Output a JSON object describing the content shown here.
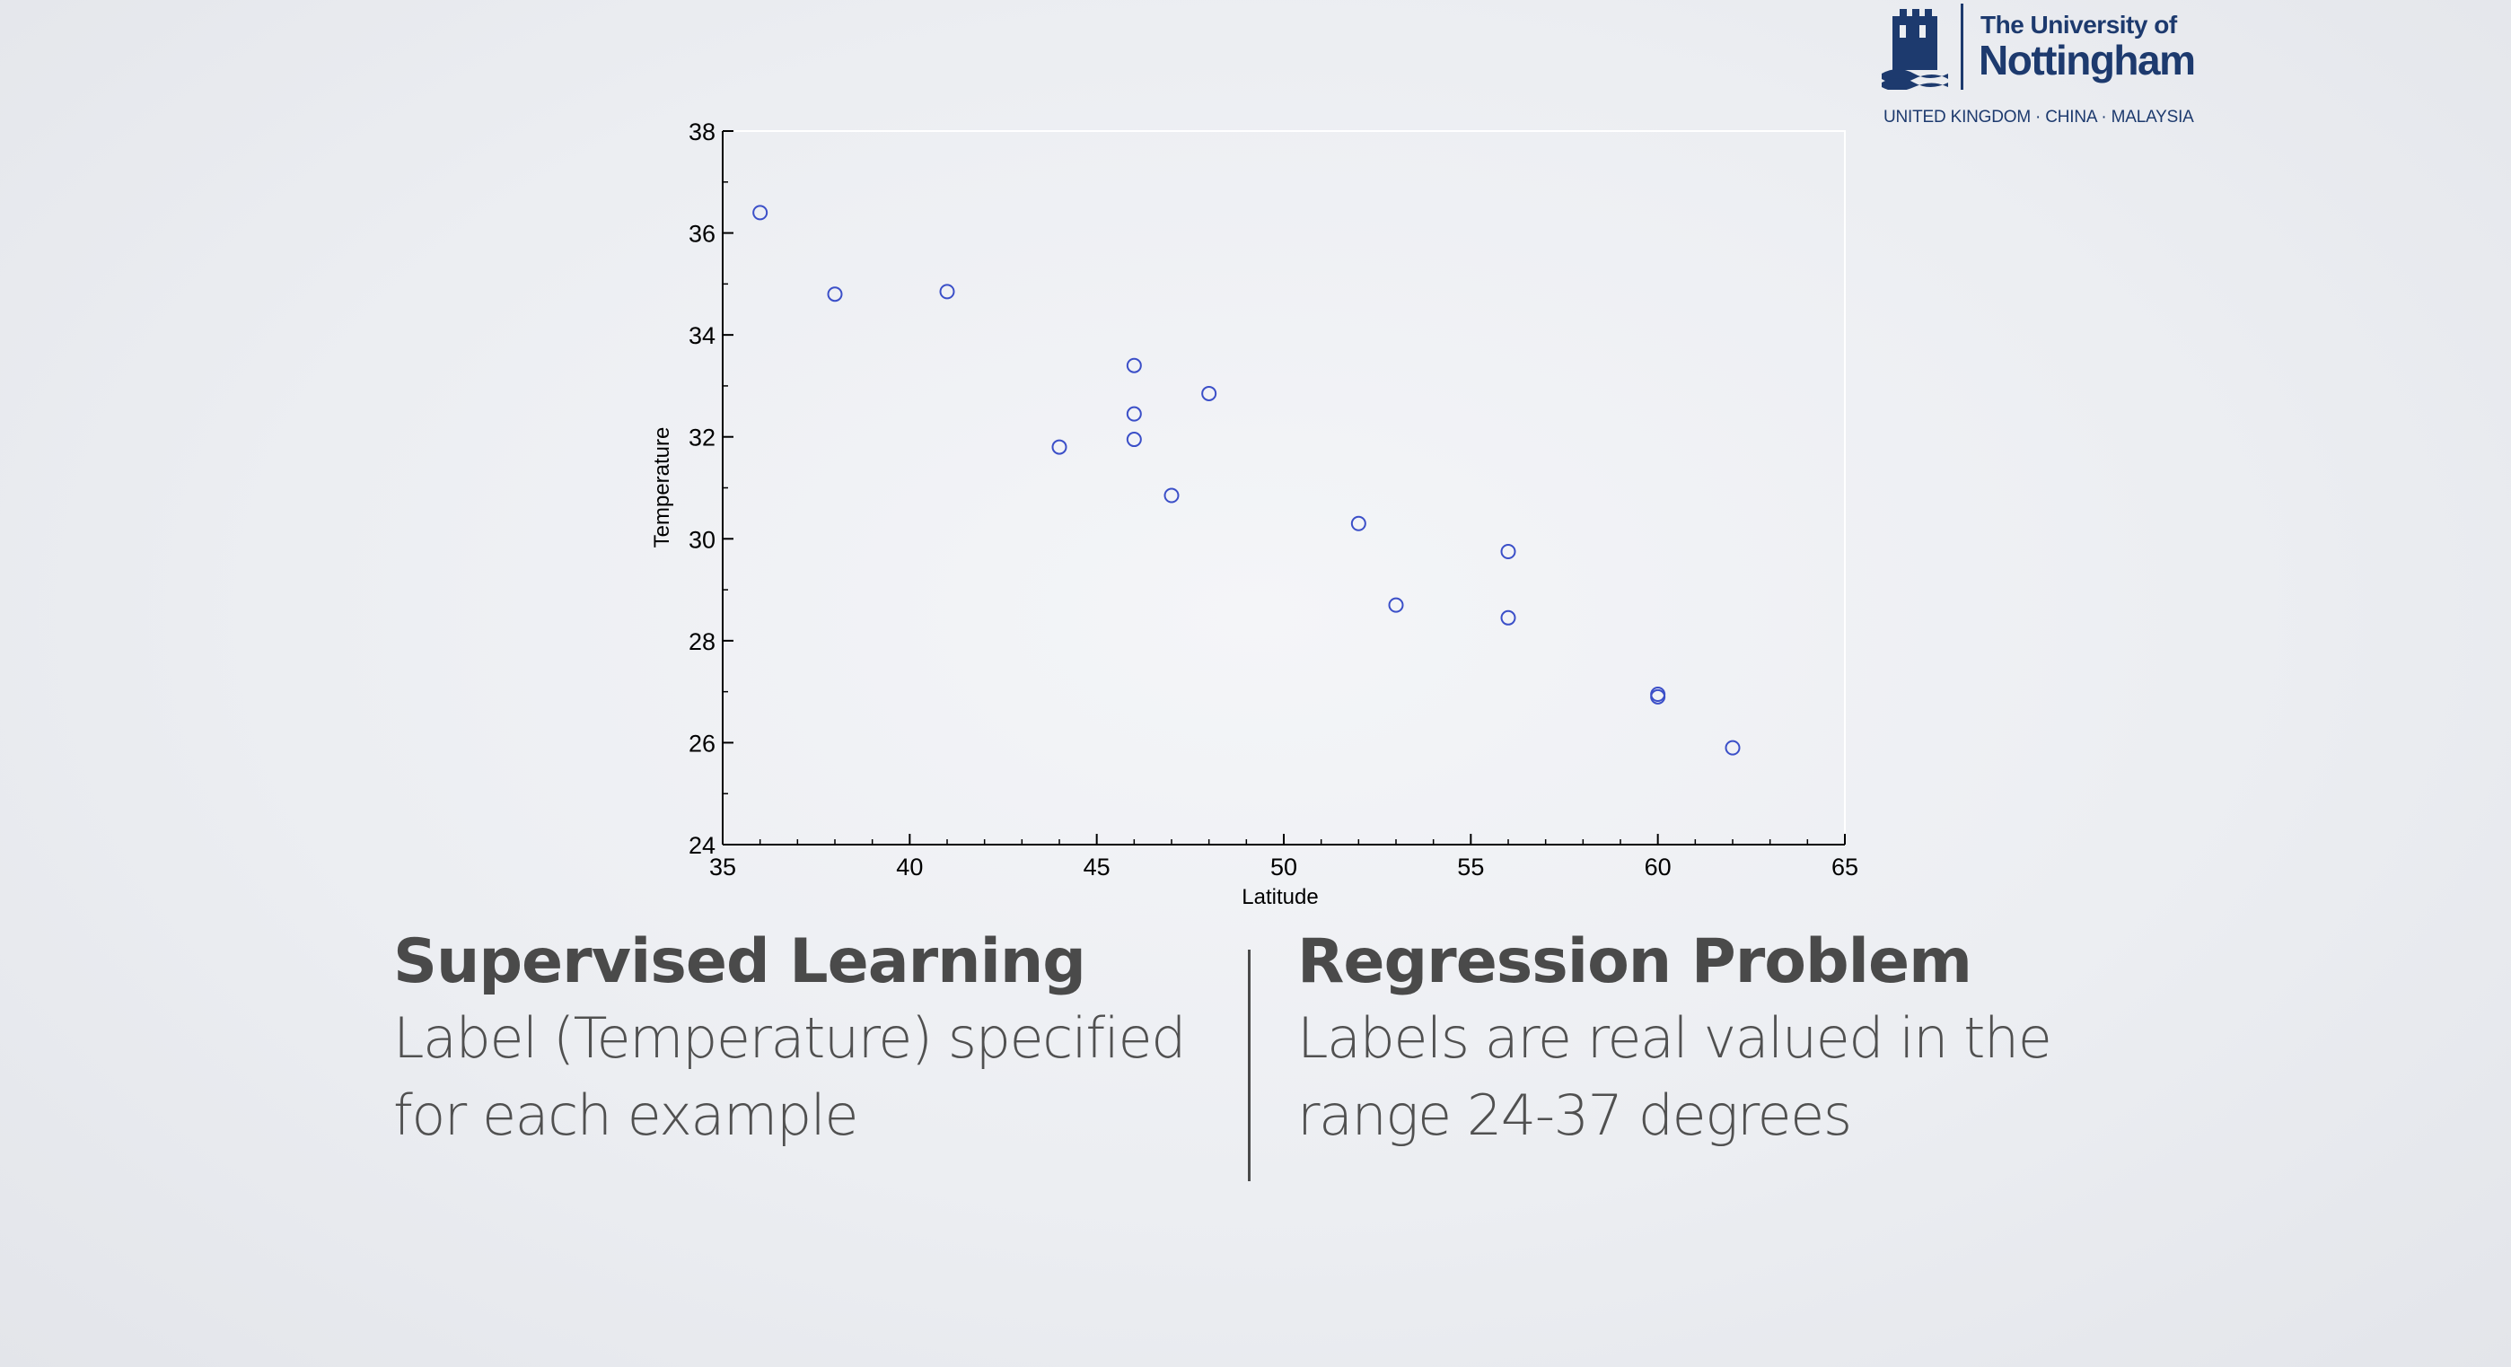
{
  "logo": {
    "line1": "The University of",
    "line2": "Nottingham",
    "subtitle": "UNITED KINGDOM · CHINA · MALAYSIA",
    "crest_icon": "castle-crest-icon",
    "color": "#1d3a6e"
  },
  "chart_data": {
    "type": "scatter",
    "xlabel": "Latitude",
    "ylabel": "Temperature",
    "xlim": [
      35,
      65
    ],
    "ylim": [
      24,
      38
    ],
    "x_ticks": [
      35,
      40,
      45,
      50,
      55,
      60,
      65
    ],
    "y_ticks": [
      24,
      26,
      28,
      30,
      32,
      34,
      36,
      38
    ],
    "grid": false,
    "marker": "open-circle",
    "marker_color": "#3b4fc8",
    "points": [
      {
        "x": 36,
        "y": 36.4
      },
      {
        "x": 38,
        "y": 34.8
      },
      {
        "x": 41,
        "y": 34.85
      },
      {
        "x": 44,
        "y": 31.8
      },
      {
        "x": 46,
        "y": 33.4
      },
      {
        "x": 46,
        "y": 32.45
      },
      {
        "x": 46,
        "y": 31.95
      },
      {
        "x": 47,
        "y": 30.85
      },
      {
        "x": 48,
        "y": 32.85
      },
      {
        "x": 52,
        "y": 30.3
      },
      {
        "x": 53,
        "y": 28.7
      },
      {
        "x": 56,
        "y": 29.75
      },
      {
        "x": 56,
        "y": 28.45
      },
      {
        "x": 60,
        "y": 26.95
      },
      {
        "x": 60,
        "y": 26.9
      },
      {
        "x": 62,
        "y": 25.9
      }
    ]
  },
  "captions": {
    "left": {
      "title": "Supervised Learning",
      "line1": "Label (Temperature) specified",
      "line2": "for each example"
    },
    "right": {
      "title": "Regression Problem",
      "line1": "Labels are real valued in the",
      "line2": "range 24-37 degrees"
    }
  }
}
